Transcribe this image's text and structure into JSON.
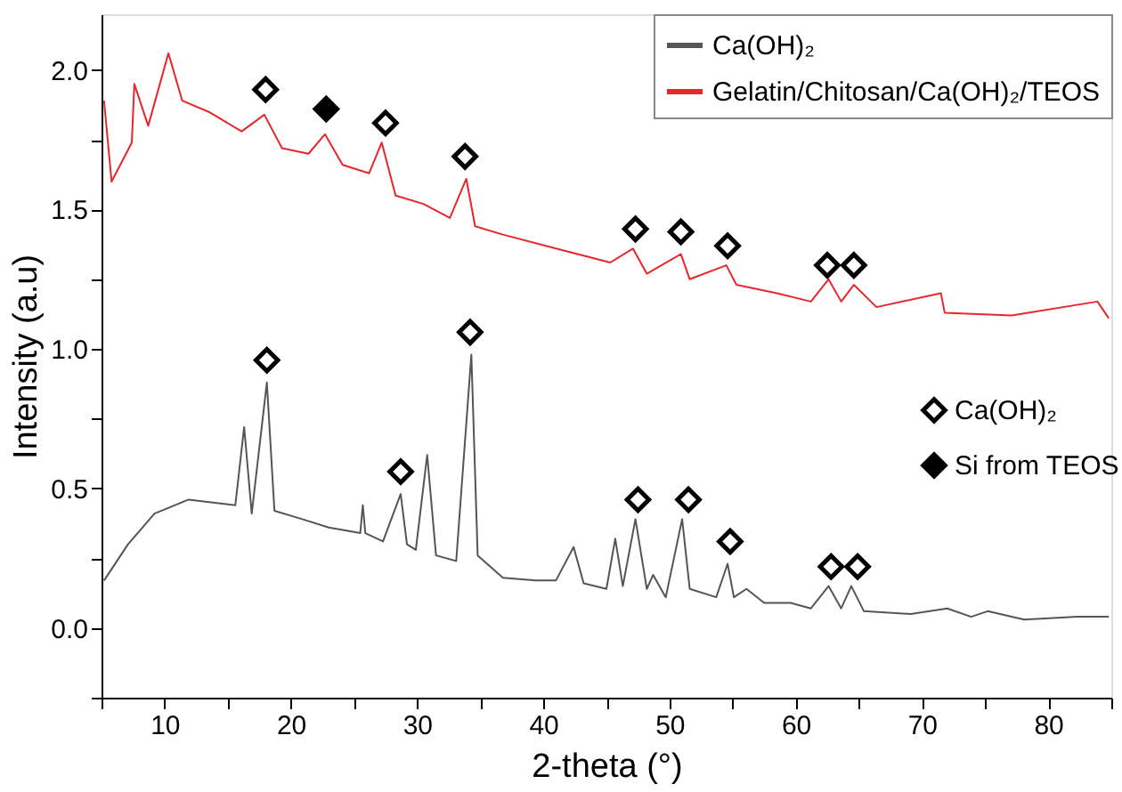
{
  "chart_data": {
    "type": "line",
    "xlabel": "2-theta (°)",
    "ylabel": "Intensity (a.u)",
    "xlim": [
      5,
      85
    ],
    "ylim": [
      -0.25,
      2.2
    ],
    "xticks": [
      {
        "value": 5,
        "label": null
      },
      10,
      {
        "value": 15,
        "label": null
      },
      20,
      {
        "value": 25,
        "label": null
      },
      30,
      {
        "value": 35,
        "label": null
      },
      40,
      {
        "value": 45,
        "label": null
      },
      50,
      {
        "value": 55,
        "label": null
      },
      60,
      {
        "value": 65,
        "label": null
      },
      70,
      {
        "value": 75,
        "label": null
      },
      80,
      {
        "value": 85,
        "label": null
      }
    ],
    "yticks": [
      {
        "value": -0.25,
        "label": null
      },
      {
        "value": 0,
        "label": "0.0"
      },
      {
        "value": 0.25,
        "label": null
      },
      {
        "value": 0.5,
        "label": "0.5"
      },
      {
        "value": 0.75,
        "label": null
      },
      {
        "value": 1,
        "label": "1.0"
      },
      {
        "value": 1.25,
        "label": null
      },
      {
        "value": 1.5,
        "label": "1.5"
      },
      {
        "value": 1.75,
        "label": null
      },
      {
        "value": 2,
        "label": "2.0"
      }
    ],
    "grid": false,
    "legend": "top right",
    "line_style": "solid",
    "series": [
      {
        "name": "Ca(OH)₂",
        "color": "#555555",
        "x": [
          5.2,
          7.1,
          9.2,
          11.9,
          15.6,
          16.3,
          16.9,
          18.1,
          18.7,
          20.9,
          23.0,
          25.5,
          25.7,
          25.9,
          27.3,
          28.7,
          29.2,
          29.9,
          30.8,
          31.5,
          33.1,
          34.3,
          34.8,
          36.8,
          39.4,
          41.0,
          42.4,
          43.2,
          45.0,
          45.7,
          46.3,
          47.3,
          48.2,
          48.7,
          49.7,
          51.0,
          51.6,
          53.7,
          54.6,
          55.1,
          56.1,
          57.5,
          59.6,
          61.2,
          62.6,
          63.6,
          64.4,
          65.4,
          69.1,
          72.0,
          73.9,
          75.2,
          78.1,
          82.3,
          84.8
        ],
        "values": [
          0.17,
          0.3,
          0.41,
          0.46,
          0.44,
          0.72,
          0.41,
          0.88,
          0.42,
          0.39,
          0.36,
          0.34,
          0.44,
          0.34,
          0.31,
          0.48,
          0.3,
          0.28,
          0.62,
          0.26,
          0.24,
          0.98,
          0.26,
          0.18,
          0.17,
          0.17,
          0.29,
          0.16,
          0.14,
          0.32,
          0.15,
          0.39,
          0.14,
          0.19,
          0.11,
          0.39,
          0.14,
          0.11,
          0.23,
          0.11,
          0.14,
          0.09,
          0.09,
          0.07,
          0.15,
          0.07,
          0.15,
          0.06,
          0.05,
          0.07,
          0.04,
          0.06,
          0.03,
          0.04,
          0.04
        ]
      },
      {
        "name": "Gelatin/Chitosan/Ca(OH)₂/TEOS",
        "color": "#e8262b",
        "x": [
          5.2,
          5.8,
          7.4,
          7.6,
          8.7,
          10.3,
          11.4,
          13.5,
          16.1,
          17.9,
          19.3,
          21.4,
          22.7,
          24.1,
          26.2,
          27.2,
          28.3,
          30.5,
          32.6,
          33.9,
          34.6,
          36.8,
          41.0,
          45.3,
          47.1,
          48.2,
          50.9,
          51.6,
          54.5,
          55.3,
          58.5,
          61.2,
          62.6,
          63.6,
          64.6,
          66.4,
          71.5,
          71.8,
          77.1,
          83.9,
          84.8
        ],
        "values": [
          1.89,
          1.6,
          1.74,
          1.95,
          1.8,
          2.06,
          1.89,
          1.85,
          1.78,
          1.84,
          1.72,
          1.7,
          1.77,
          1.66,
          1.63,
          1.74,
          1.55,
          1.52,
          1.47,
          1.61,
          1.44,
          1.41,
          1.36,
          1.31,
          1.36,
          1.27,
          1.34,
          1.25,
          1.3,
          1.23,
          1.2,
          1.17,
          1.25,
          1.17,
          1.23,
          1.15,
          1.2,
          1.13,
          1.12,
          1.17,
          1.11
        ]
      },
      {
        "name": "Ca(OH)₂",
        "type": "scatter",
        "marker": "diamond",
        "color": "#000000",
        "x": [
          18.0,
          27.5,
          33.8,
          47.3,
          50.9,
          54.6,
          62.5,
          64.6,
          18.1,
          28.7,
          34.2,
          47.5,
          51.5,
          54.8,
          62.8,
          64.9
        ],
        "values": [
          1.93,
          1.81,
          1.69,
          1.43,
          1.42,
          1.37,
          1.3,
          1.3,
          0.96,
          0.56,
          1.06,
          0.46,
          0.46,
          0.31,
          0.22,
          0.22
        ]
      },
      {
        "name": "Si from TEOS",
        "type": "scatter",
        "marker": "diamond",
        "color": "#000000",
        "x": [
          22.8
        ],
        "values": [
          1.86
        ]
      }
    ]
  }
}
